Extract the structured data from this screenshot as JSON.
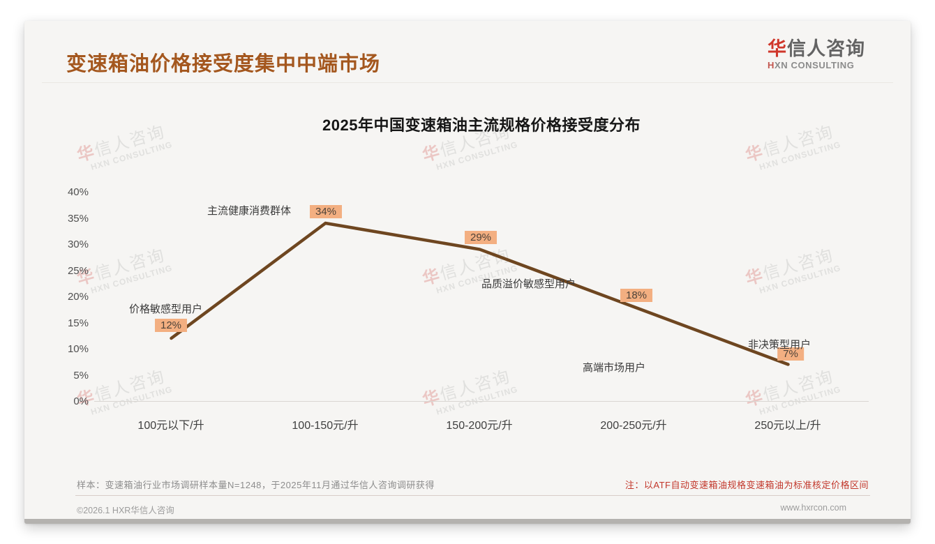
{
  "header": {
    "title": "变速箱油价格接受度集中中端市场",
    "logo_cn_accent": "华",
    "logo_cn_rest": "信人咨询",
    "logo_en_accent": "H",
    "logo_en_rest": "XN CONSULTING"
  },
  "watermark": {
    "cn_accent": "华",
    "cn_rest": "信人咨询",
    "en": "HXN CONSULTING"
  },
  "chart_data": {
    "type": "line",
    "title": "2025年中国变速箱油主流规格价格接受度分布",
    "categories": [
      "100元以下/升",
      "100-150元/升",
      "150-200元/升",
      "200-250元/升",
      "250元以上/升"
    ],
    "values": [
      12,
      34,
      29,
      18,
      7
    ],
    "point_labels": [
      "12%",
      "34%",
      "29%",
      "18%",
      "7%"
    ],
    "annotations": [
      "价格敏感型用户",
      "主流健康消费群体",
      "品质溢价敏感型用户",
      "高端市场用户",
      "非决策型用户"
    ],
    "xlabel": "",
    "ylabel": "",
    "ylim": [
      0,
      40
    ],
    "ytick_step": 5,
    "yticks": [
      "40%",
      "35%",
      "30%",
      "25%",
      "20%",
      "15%",
      "10%",
      "5%",
      "0%"
    ],
    "grid": false,
    "legend": "none",
    "line_color": "#6e4620",
    "point_label_bg": "#f3af81"
  },
  "footer": {
    "sample_note": "样本：变速箱油行业市场调研样本量N=1248，于2025年11月通过华信人咨询调研获得",
    "red_note": "注：以ATF自动变速箱油规格变速箱油为标准核定价格区间",
    "copyright": "©2026.1 HXR华信人咨询",
    "website": "www.hxrcon.com"
  }
}
